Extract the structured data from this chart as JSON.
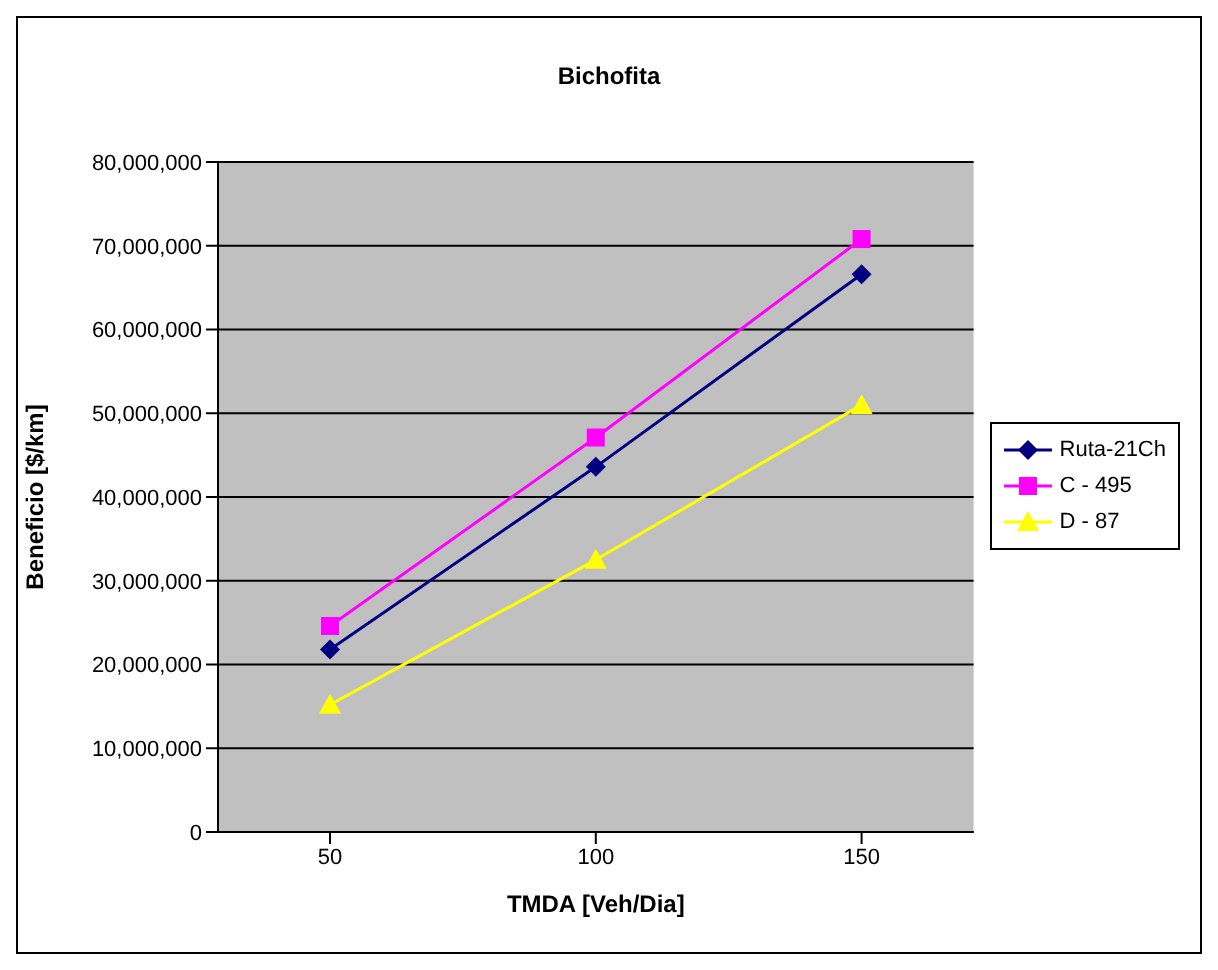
{
  "chart_data": {
    "type": "line",
    "title": "Bichofita",
    "xlabel": "TMDA [Veh/Dia]",
    "ylabel": "Beneficio [$/km]",
    "categories": [
      "50",
      "100",
      "150"
    ],
    "series": [
      {
        "name": "Ruta-21Ch",
        "color": "#000080",
        "marker": "diamond",
        "values": [
          21800000,
          43600000,
          66600000
        ]
      },
      {
        "name": "C - 495",
        "color": "#ff00ff",
        "marker": "square",
        "values": [
          24600000,
          47100000,
          70800000
        ]
      },
      {
        "name": "D - 87",
        "color": "#ffff00",
        "marker": "triangle",
        "values": [
          15200000,
          32500000,
          51000000
        ]
      }
    ],
    "ylim": [
      0,
      80000000
    ],
    "yticks": [
      0,
      {
        "value": 10000000,
        "label": "10,000,000"
      },
      {
        "value": 20000000,
        "label": "20,000,000"
      },
      {
        "value": 30000000,
        "label": "30,000,000"
      },
      {
        "value": 40000000,
        "label": "40,000,000"
      },
      {
        "value": 50000000,
        "label": "50,000,000"
      },
      {
        "value": 60000000,
        "label": "60,000,000"
      },
      {
        "value": 70000000,
        "label": "70,000,000"
      },
      {
        "value": 80000000,
        "label": "80,000,000"
      }
    ],
    "grid": "y",
    "legend": "right",
    "line_style": "solid"
  }
}
